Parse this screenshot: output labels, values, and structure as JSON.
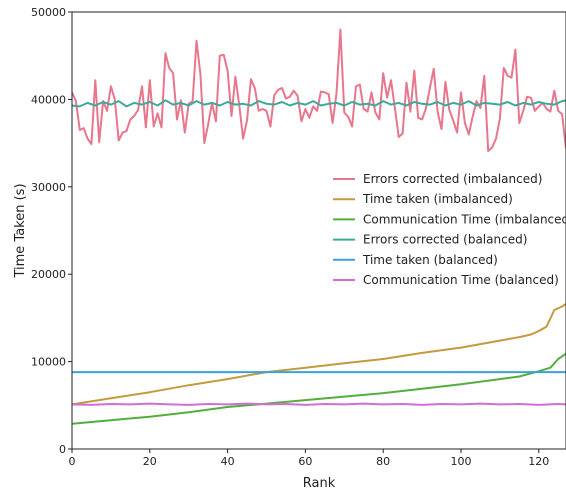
{
  "chart_data": {
    "type": "line",
    "xlabel": "Rank",
    "ylabel": "Time Taken (s)",
    "xlim": [
      0,
      127
    ],
    "ylim": [
      0,
      50000
    ],
    "xticks": [
      0,
      20,
      40,
      60,
      80,
      100,
      120
    ],
    "yticks": [
      0,
      10000,
      20000,
      30000,
      40000,
      50000
    ],
    "grid": false,
    "legend_position": "right-middle",
    "series": [
      {
        "name": "Errors corrected (imbalanced)",
        "color": "#e8768c",
        "x": [
          0,
          1,
          2,
          3,
          4,
          5,
          6,
          7,
          8,
          9,
          10,
          11,
          12,
          13,
          14,
          15,
          16,
          17,
          18,
          19,
          20,
          21,
          22,
          23,
          24,
          25,
          26,
          27,
          28,
          29,
          30,
          31,
          32,
          33,
          34,
          35,
          36,
          37,
          38,
          39,
          40,
          41,
          42,
          43,
          44,
          45,
          46,
          47,
          48,
          49,
          50,
          51,
          52,
          53,
          54,
          55,
          56,
          57,
          58,
          59,
          60,
          61,
          62,
          63,
          64,
          65,
          66,
          67,
          68,
          69,
          70,
          71,
          72,
          73,
          74,
          75,
          76,
          77,
          78,
          79,
          80,
          81,
          82,
          83,
          84,
          85,
          86,
          87,
          88,
          89,
          90,
          91,
          92,
          93,
          94,
          95,
          96,
          97,
          98,
          99,
          100,
          101,
          102,
          103,
          104,
          105,
          106,
          107,
          108,
          109,
          110,
          111,
          112,
          113,
          114,
          115,
          116,
          117,
          118,
          119,
          120,
          121,
          122,
          123,
          124,
          125,
          126,
          127
        ],
        "values": [
          40800,
          39800,
          36500,
          36700,
          35500,
          34900,
          42200,
          35100,
          39800,
          38700,
          41500,
          40000,
          35300,
          36200,
          36400,
          37700,
          38100,
          38800,
          41500,
          36800,
          42200,
          36900,
          38400,
          36800,
          45300,
          43600,
          43000,
          37700,
          39900,
          36200,
          39500,
          39800,
          46700,
          42900,
          35000,
          37100,
          39600,
          37500,
          45000,
          45100,
          43300,
          38100,
          42600,
          39300,
          35500,
          37600,
          42300,
          41300,
          38700,
          38900,
          38700,
          36900,
          40500,
          41100,
          41300,
          40100,
          40300,
          41000,
          40400,
          37500,
          38900,
          37900,
          39200,
          38700,
          40900,
          40800,
          40600,
          37300,
          40700,
          48000,
          38500,
          38000,
          36900,
          41500,
          41700,
          38900,
          38600,
          40800,
          38500,
          37700,
          43000,
          40200,
          42200,
          39000,
          35700,
          36100,
          41900,
          38600,
          43300,
          37900,
          37700,
          39000,
          41300,
          43500,
          38600,
          36600,
          42000,
          38800,
          37600,
          36200,
          40800,
          37300,
          36000,
          38000,
          39800,
          39000,
          42700,
          34100,
          34500,
          35500,
          37800,
          43600,
          42700,
          42500,
          45700,
          37300,
          38700,
          40300,
          40200,
          38700,
          39200,
          39600,
          38900,
          38600,
          41000,
          38700,
          38300,
          34400
        ]
      },
      {
        "name": "Time taken (imbalanced)",
        "color": "#c49a3e",
        "x": [
          0,
          10,
          20,
          30,
          40,
          50,
          60,
          70,
          80,
          90,
          100,
          110,
          115,
          118,
          120,
          122,
          124,
          126,
          127
        ],
        "values": [
          5100,
          5800,
          6500,
          7300,
          8000,
          8800,
          9300,
          9800,
          10300,
          11000,
          11600,
          12400,
          12800,
          13100,
          13500,
          14000,
          15900,
          16300,
          16600
        ]
      },
      {
        "name": "Communication Time (imbalanced)",
        "color": "#55ad3d",
        "x": [
          0,
          10,
          20,
          30,
          40,
          50,
          60,
          70,
          80,
          90,
          100,
          110,
          115,
          120,
          123,
          125,
          127
        ],
        "values": [
          2900,
          3300,
          3700,
          4200,
          4800,
          5200,
          5600,
          6000,
          6400,
          6900,
          7400,
          8000,
          8300,
          8900,
          9300,
          10300,
          10900
        ]
      },
      {
        "name": "Errors corrected (balanced)",
        "color": "#3eaa96",
        "x": [
          0,
          2,
          4,
          6,
          8,
          10,
          12,
          14,
          16,
          18,
          20,
          22,
          24,
          26,
          28,
          30,
          32,
          34,
          36,
          38,
          40,
          42,
          44,
          46,
          48,
          50,
          52,
          54,
          56,
          58,
          60,
          62,
          64,
          66,
          68,
          70,
          72,
          74,
          76,
          78,
          80,
          82,
          84,
          86,
          88,
          90,
          92,
          94,
          96,
          98,
          100,
          102,
          104,
          106,
          108,
          110,
          112,
          114,
          116,
          118,
          120,
          122,
          124,
          126,
          127
        ],
        "values": [
          39300,
          39200,
          39600,
          39300,
          39700,
          39400,
          39800,
          39200,
          39600,
          39400,
          39700,
          39300,
          39900,
          39400,
          39600,
          39300,
          39800,
          39400,
          39600,
          39300,
          39700,
          39400,
          39500,
          39300,
          39800,
          39500,
          39400,
          39700,
          39300,
          39600,
          39400,
          39800,
          39300,
          39500,
          39600,
          39300,
          39700,
          39400,
          39500,
          39300,
          39800,
          39400,
          39600,
          39300,
          39700,
          39500,
          39400,
          39700,
          39300,
          39600,
          39400,
          39800,
          39300,
          39600,
          39500,
          39400,
          39700,
          39300,
          39600,
          39400,
          39700,
          39500,
          39400,
          39800,
          39900
        ]
      },
      {
        "name": "Time taken (balanced)",
        "color": "#3aa3d6",
        "x": [
          0,
          127
        ],
        "values": [
          8800,
          8800
        ]
      },
      {
        "name": "Communication Time (balanced)",
        "color": "#cf6fd6",
        "x": [
          0,
          5,
          10,
          15,
          20,
          25,
          30,
          35,
          40,
          45,
          50,
          55,
          60,
          65,
          70,
          75,
          80,
          85,
          90,
          95,
          100,
          105,
          110,
          115,
          120,
          125,
          127
        ],
        "values": [
          5100,
          5050,
          5150,
          5100,
          5200,
          5100,
          5050,
          5150,
          5100,
          5200,
          5100,
          5150,
          5050,
          5150,
          5100,
          5200,
          5100,
          5150,
          5050,
          5150,
          5100,
          5200,
          5100,
          5150,
          5050,
          5150,
          5100
        ]
      }
    ]
  }
}
